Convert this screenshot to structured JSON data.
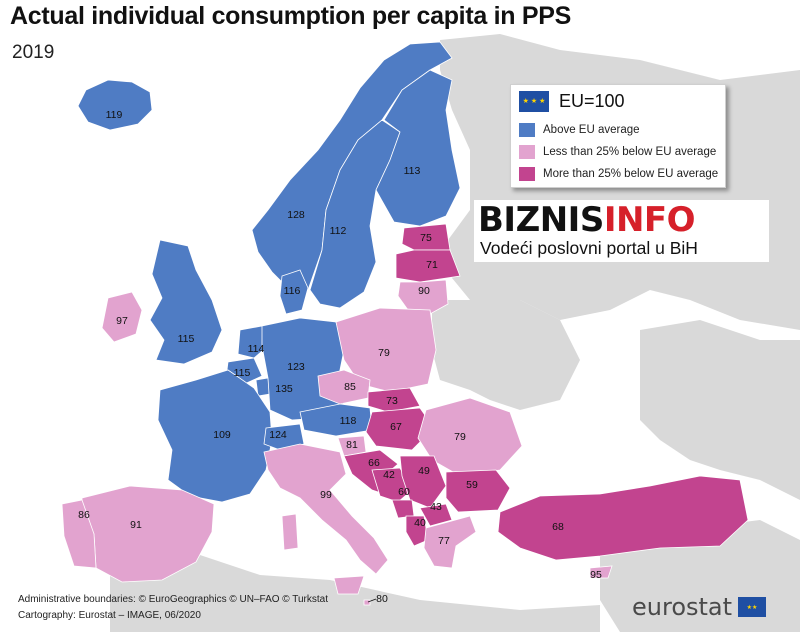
{
  "title": "Actual individual consumption per capita in PPS",
  "subtitle": "2019",
  "colors": {
    "above": "#4f7cc4",
    "less25": "#e2a3cf",
    "more25": "#c2448f",
    "nondata": "#d9d9d9",
    "sea": "#ffffff"
  },
  "legend": {
    "eu_label": "EU=100",
    "items": [
      {
        "label": "Above EU average",
        "color": "#4f7cc4"
      },
      {
        "label": "Less than 25% below EU average",
        "color": "#e2a3cf"
      },
      {
        "label": "More than 25% below EU average",
        "color": "#c2448f"
      }
    ]
  },
  "banner": {
    "logo_part1": "BIZNIS",
    "logo_part2": "INFO",
    "tagline": "Vodeći poslovni portal u BiH"
  },
  "map_data": [
    {
      "country": "Iceland",
      "value": 119,
      "class": "above"
    },
    {
      "country": "Norway",
      "value": 128,
      "class": "above"
    },
    {
      "country": "Sweden",
      "value": 112,
      "class": "above"
    },
    {
      "country": "Finland",
      "value": 113,
      "class": "above"
    },
    {
      "country": "Estonia",
      "value": 75,
      "class": "more25"
    },
    {
      "country": "Latvia",
      "value": 71,
      "class": "more25"
    },
    {
      "country": "Lithuania",
      "value": 90,
      "class": "less25"
    },
    {
      "country": "Denmark",
      "value": 116,
      "class": "above"
    },
    {
      "country": "Ireland",
      "value": 97,
      "class": "less25"
    },
    {
      "country": "United Kingdom",
      "value": 115,
      "class": "above"
    },
    {
      "country": "Netherlands",
      "value": 114,
      "class": "above"
    },
    {
      "country": "Germany",
      "value": 123,
      "class": "above"
    },
    {
      "country": "Belgium",
      "value": 115,
      "class": "above"
    },
    {
      "country": "Luxembourg",
      "value": 135,
      "class": "above"
    },
    {
      "country": "Poland",
      "value": 79,
      "class": "less25"
    },
    {
      "country": "Czechia",
      "value": 85,
      "class": "less25"
    },
    {
      "country": "Slovakia",
      "value": 73,
      "class": "more25"
    },
    {
      "country": "Austria",
      "value": 118,
      "class": "above"
    },
    {
      "country": "Hungary",
      "value": 67,
      "class": "more25"
    },
    {
      "country": "Romania",
      "value": 79,
      "class": "less25"
    },
    {
      "country": "France",
      "value": 109,
      "class": "above"
    },
    {
      "country": "Switzerland",
      "value": 124,
      "class": "above"
    },
    {
      "country": "Slovenia",
      "value": 81,
      "class": "less25"
    },
    {
      "country": "Croatia",
      "value": 66,
      "class": "more25"
    },
    {
      "country": "Bosnia and Herzegovina",
      "value": 42,
      "class": "more25"
    },
    {
      "country": "Serbia",
      "value": 49,
      "class": "more25"
    },
    {
      "country": "Montenegro",
      "value": 60,
      "class": "more25"
    },
    {
      "country": "Bulgaria",
      "value": 59,
      "class": "more25"
    },
    {
      "country": "North Macedonia",
      "value": 43,
      "class": "more25"
    },
    {
      "country": "Albania",
      "value": 40,
      "class": "more25"
    },
    {
      "country": "Greece",
      "value": 77,
      "class": "less25"
    },
    {
      "country": "Italy",
      "value": 99,
      "class": "less25"
    },
    {
      "country": "Spain",
      "value": 91,
      "class": "less25"
    },
    {
      "country": "Portugal",
      "value": 86,
      "class": "less25"
    },
    {
      "country": "Turkey",
      "value": 68,
      "class": "more25"
    },
    {
      "country": "Cyprus",
      "value": 95,
      "class": "less25"
    },
    {
      "country": "Malta",
      "value": 80,
      "class": "less25"
    }
  ],
  "credits": {
    "line1": "Administrative boundaries: © EuroGeographics © UN–FAO © Turkstat",
    "line2": "Cartography: Eurostat – IMAGE, 06/2020"
  },
  "brand": {
    "name": "eurostat"
  }
}
